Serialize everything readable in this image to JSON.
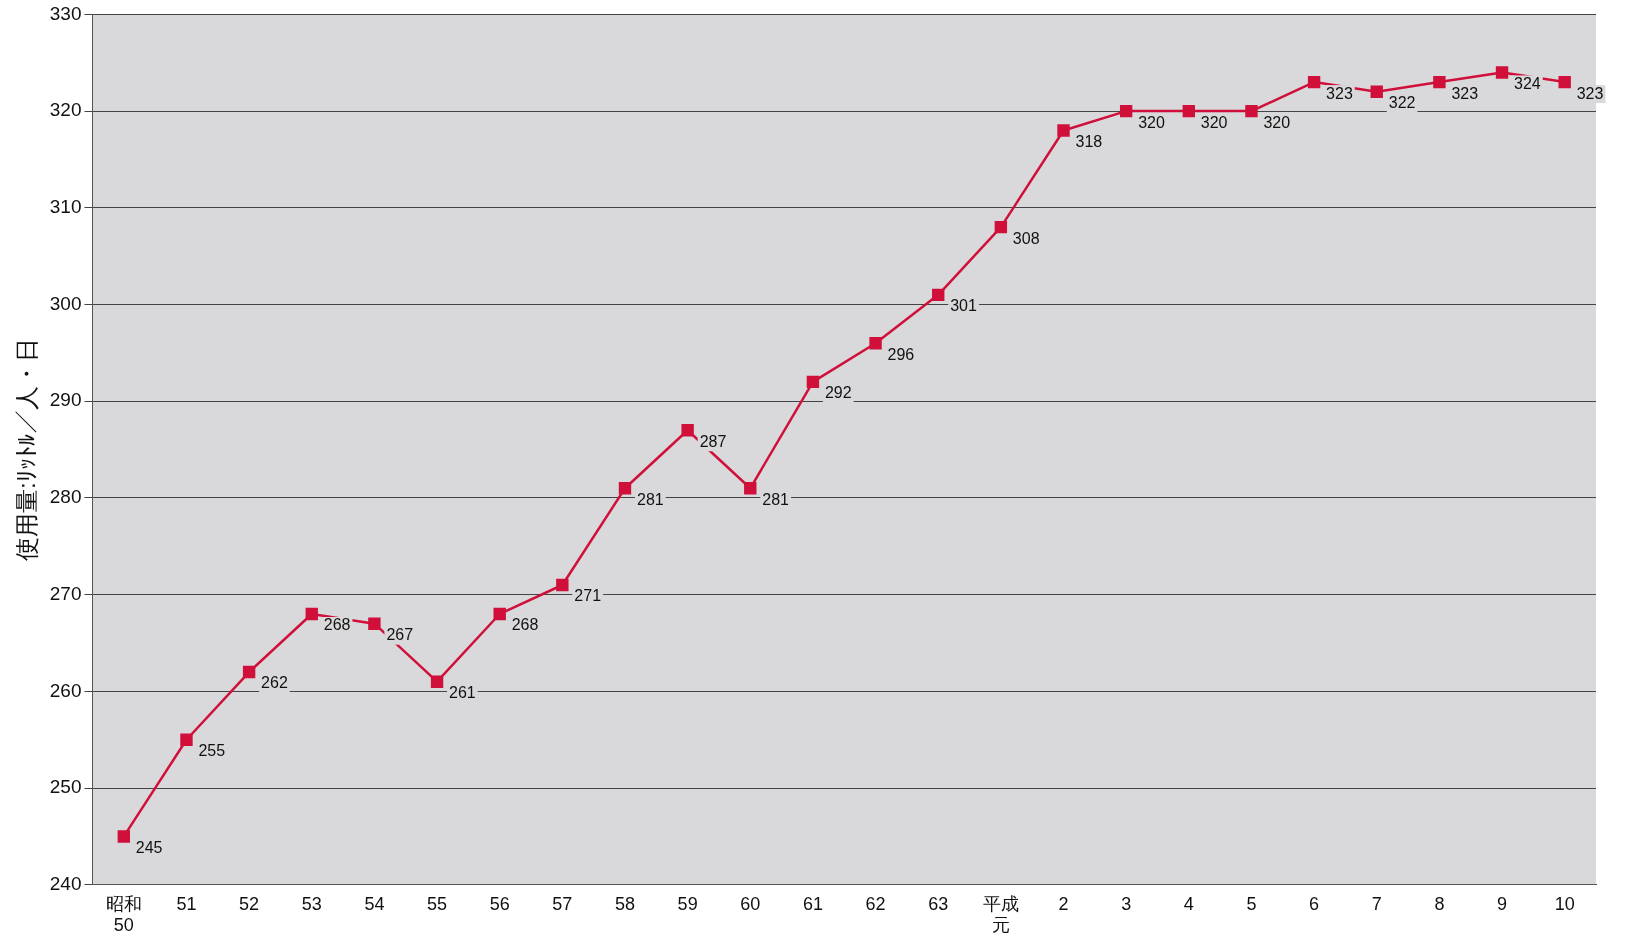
{
  "chart_data": {
    "type": "line",
    "ylabel": "使用量:ﾘｯﾄﾙ／人・日",
    "categories": [
      "昭和50",
      "51",
      "52",
      "53",
      "54",
      "55",
      "56",
      "57",
      "58",
      "59",
      "60",
      "61",
      "62",
      "63",
      "平成元",
      "2",
      "3",
      "4",
      "5",
      "6",
      "7",
      "8",
      "9",
      "10"
    ],
    "series": [
      {
        "color": "#d0103a",
        "values": [
          245,
          255,
          262,
          268,
          267,
          261,
          268,
          271,
          281,
          287,
          281,
          292,
          296,
          301,
          308,
          318,
          320,
          320,
          320,
          323,
          322,
          323,
          324,
          323
        ]
      }
    ],
    "ylim": [
      240,
      330
    ],
    "yticks": [
      240,
      250,
      260,
      270,
      280,
      290,
      300,
      310,
      320,
      330
    ],
    "grid": "y",
    "marker": "square",
    "line_style": "solid",
    "data_labels": true,
    "legend": false
  }
}
